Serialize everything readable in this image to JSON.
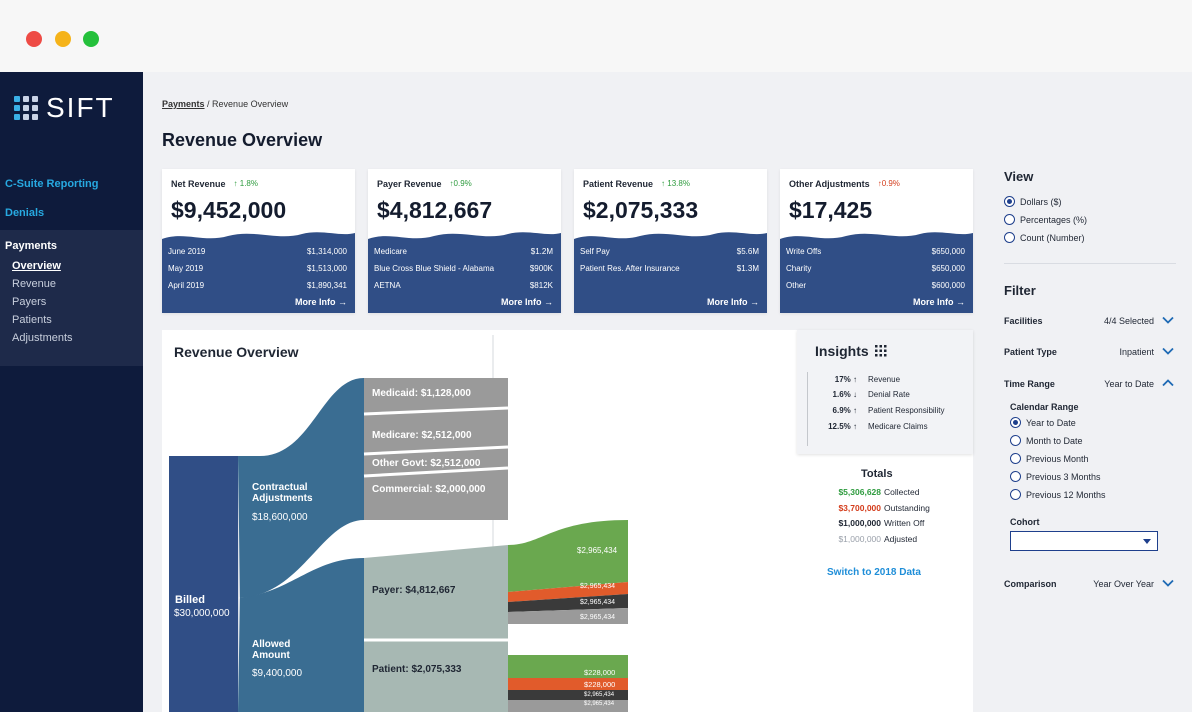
{
  "sidebar": {
    "logo": "SIFT",
    "top_items": [
      "C-Suite Reporting",
      "Denials"
    ],
    "group_title": "Payments",
    "sub_items": [
      "Overview",
      "Revenue",
      "Payers",
      "Patients",
      "Adjustments"
    ]
  },
  "breadcrumb": {
    "link": "Payments",
    "current": "/ Revenue Overview"
  },
  "page_title": "Revenue Overview",
  "cards": [
    {
      "title": "Net Revenue",
      "trend": "↑ 1.8%",
      "trend_dir": "up",
      "value": "$9,452,000",
      "rows": [
        [
          "June 2019",
          "$1,314,000"
        ],
        [
          "May 2019",
          "$1,513,000"
        ],
        [
          "April 2019",
          "$1,890,341"
        ]
      ],
      "more": "More Info →"
    },
    {
      "title": "Payer Revenue",
      "trend": "↑0.9%",
      "trend_dir": "up",
      "value": "$4,812,667",
      "rows": [
        [
          "Medicare",
          "$1.2M"
        ],
        [
          "Blue Cross Blue Shield - Alabama",
          "$900K"
        ],
        [
          "AETNA",
          "$812K"
        ]
      ],
      "more": "More Info →"
    },
    {
      "title": "Patient Revenue",
      "trend": "↑ 13.8%",
      "trend_dir": "up",
      "value": "$2,075,333",
      "rows": [
        [
          "Self Pay",
          "$5.6M"
        ],
        [
          "Patient Res. After Insurance",
          "$1.3M"
        ]
      ],
      "more": "More Info →"
    },
    {
      "title": "Other Adjustments",
      "trend": "↑0.9%",
      "trend_dir": "down",
      "value": "$17,425",
      "rows": [
        [
          "Write Offs",
          "$650,000"
        ],
        [
          "Charity",
          "$650,000"
        ],
        [
          "Other",
          "$600,000"
        ]
      ],
      "more": "More Info →"
    }
  ],
  "sankey": {
    "title": "Revenue Overview",
    "billed": "Billed",
    "billed_value": "$30,000,000",
    "contractual": "Contractual Adjustments",
    "contractual_value": "$18,600,000",
    "allowed": "Allowed Amount",
    "allowed_value": "$9,400,000",
    "medicaid": "Medicaid: $1,128,000",
    "medicare": "Medicare: $2,512,000",
    "other_govt": "Other Govt: $2,512,000",
    "commercial": "Commercial: $2,000,000",
    "payer": "Payer: $4,812,667",
    "patient": "Patient: $2,075,333",
    "payer_splits": [
      "$2,965,434",
      "$2,965,434",
      "$2,965,434",
      "$2,965,434"
    ],
    "patient_splits": [
      "$228,000",
      "$228,000",
      "$2,965,434",
      "$2,965,434"
    ],
    "colors": {
      "blue": "#304e86",
      "teal": "#3a6d92",
      "gray": "#9a9a9a",
      "sage": "#a7b8b3",
      "green": "#6aa84f",
      "orange": "#e15b2b",
      "dark": "#3a3a3a"
    }
  },
  "insights": {
    "title": "Insights",
    "rows": [
      {
        "value": "17% ↑",
        "label": "Revenue"
      },
      {
        "value": "1.6% ↓",
        "label": "Denial Rate"
      },
      {
        "value": "6.9% ↑",
        "label": "Patient Responsibility"
      },
      {
        "value": "12.5% ↑",
        "label": "Medicare Claims"
      }
    ]
  },
  "totals": {
    "title": "Totals",
    "rows": [
      {
        "value": "$5,306,628",
        "label": "Collected",
        "color": "#2e9b3e"
      },
      {
        "value": "$3,700,000",
        "label": "Outstanding",
        "color": "#d43d1c"
      },
      {
        "value": "$1,000,000",
        "label": "Written Off",
        "color": "#1f2633"
      },
      {
        "value": "$1,000,000",
        "label": "Adjusted",
        "color": "#9aa0aa"
      }
    ],
    "switch_link": "Switch to 2018 Data"
  },
  "view": {
    "title": "View",
    "options": [
      "Dollars ($)",
      "Percentages (%)",
      "Count (Number)"
    ],
    "selected": 0
  },
  "filter": {
    "title": "Filter",
    "facilities_label": "Facilities",
    "facilities_value": "4/4 Selected",
    "patient_type_label": "Patient Type",
    "patient_type_value": "Inpatient",
    "time_range_label": "Time Range",
    "time_range_value": "Year to Date",
    "calendar_range_label": "Calendar Range",
    "calendar_options": [
      "Year to Date",
      "Month to Date",
      "Previous Month",
      "Previous 3 Months",
      "Previous 12 Months"
    ],
    "calendar_selected": 0,
    "cohort_label": "Cohort",
    "cohort_value": "",
    "comparison_label": "Comparison",
    "comparison_value": "Year Over Year"
  }
}
